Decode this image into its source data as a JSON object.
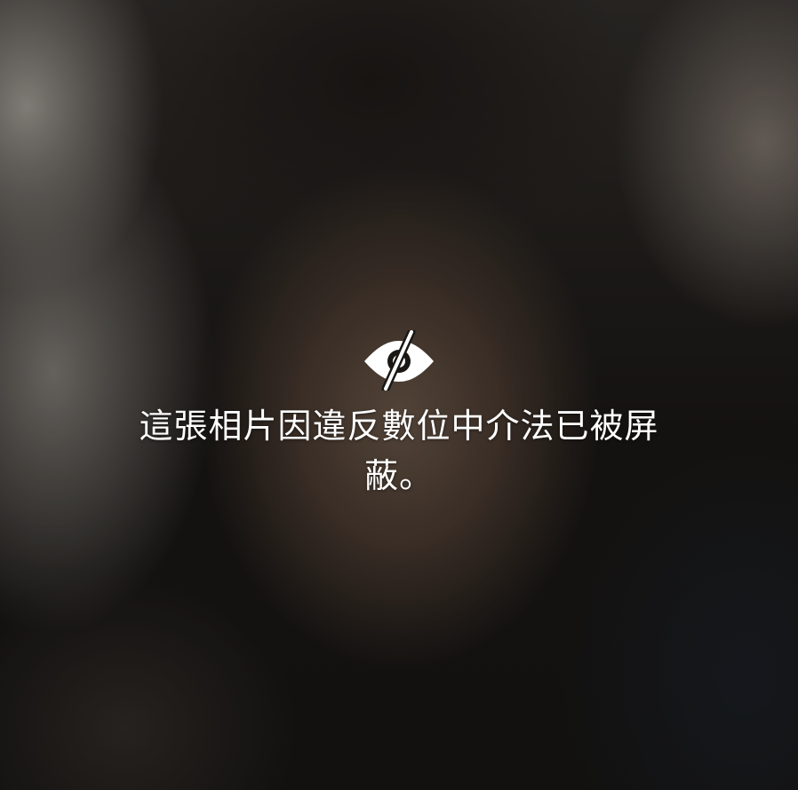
{
  "notice": {
    "icon": "eye-slash-icon",
    "message": "這張相片因違反數位中介法已被屏蔽。"
  },
  "colors": {
    "text": "#ffffff",
    "icon": "#ffffff"
  }
}
